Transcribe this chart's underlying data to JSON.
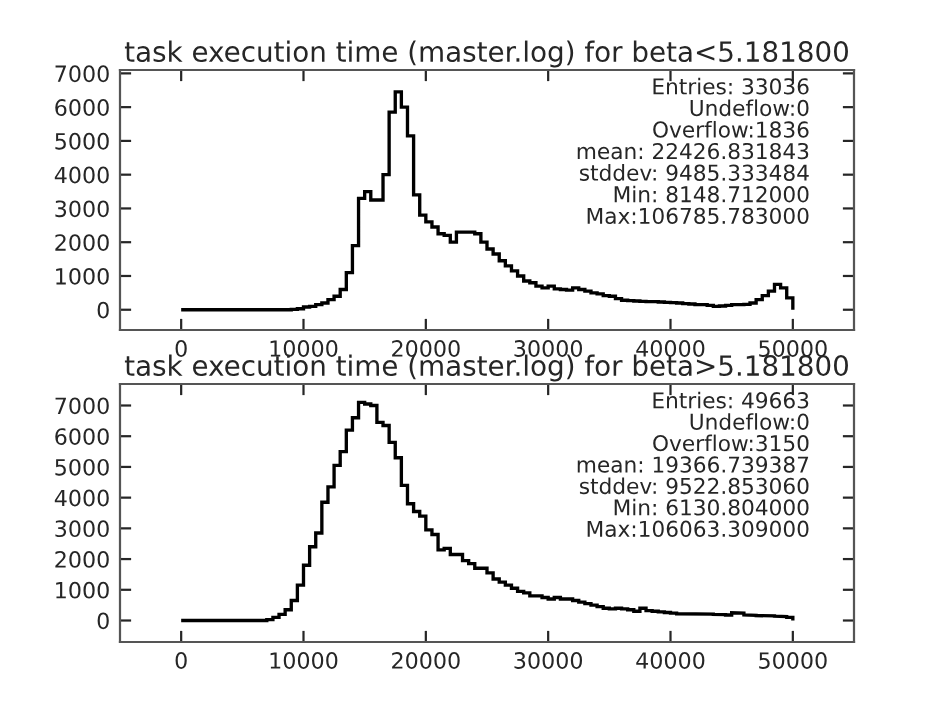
{
  "chart_data": [
    {
      "type": "histogram",
      "title": "task execution time (master.log) for beta<5.181800",
      "bins": [
        0,
        500,
        1000,
        1500,
        2000,
        2500,
        3000,
        3500,
        4000,
        4500,
        5000,
        5500,
        6000,
        6500,
        7000,
        7500,
        8000,
        8500,
        9000,
        9500,
        10000,
        10500,
        11000,
        11500,
        12000,
        12500,
        13000,
        13500,
        14000,
        14500,
        15000,
        15500,
        16000,
        16500,
        17000,
        17500,
        18000,
        18500,
        19000,
        19500,
        20000,
        20500,
        21000,
        21500,
        22000,
        22500,
        23000,
        23500,
        24000,
        24500,
        25000,
        25500,
        26000,
        26500,
        27000,
        27500,
        28000,
        28500,
        29000,
        29500,
        30000,
        30500,
        31000,
        31500,
        32000,
        32500,
        33000,
        33500,
        34000,
        34500,
        35000,
        35500,
        36000,
        36500,
        37000,
        37500,
        38000,
        38500,
        39000,
        39500,
        40000,
        40500,
        41000,
        41500,
        42000,
        42500,
        43000,
        43500,
        44000,
        44500,
        45000,
        45500,
        46000,
        46500,
        47000,
        47500,
        48000,
        48500,
        49000,
        49500,
        50000
      ],
      "values": [
        0,
        0,
        0,
        0,
        0,
        0,
        0,
        0,
        0,
        0,
        0,
        0,
        0,
        0,
        0,
        0,
        0,
        0,
        10,
        30,
        80,
        100,
        150,
        200,
        300,
        400,
        600,
        1100,
        1900,
        3300,
        3500,
        3250,
        3250,
        4000,
        5850,
        6450,
        6000,
        5150,
        3400,
        2800,
        2600,
        2450,
        2250,
        2200,
        2000,
        2300,
        2300,
        2300,
        2250,
        2000,
        1800,
        1650,
        1450,
        1300,
        1150,
        1000,
        850,
        800,
        700,
        650,
        700,
        620,
        600,
        580,
        650,
        600,
        550,
        500,
        470,
        420,
        400,
        330,
        280,
        270,
        260,
        250,
        240,
        240,
        230,
        220,
        210,
        200,
        180,
        170,
        150,
        150,
        130,
        100,
        110,
        130,
        150,
        150,
        160,
        200,
        300,
        420,
        550,
        750,
        650,
        350
      ],
      "color": "#000000",
      "xlim": [
        -5000,
        55000
      ],
      "xticks": [
        0,
        10000,
        20000,
        30000,
        40000,
        50000
      ],
      "ylim": [
        -600,
        7100
      ],
      "yticks": [
        0,
        1000,
        2000,
        3000,
        4000,
        5000,
        6000,
        7000
      ],
      "annotations": [
        "Entries: 33036",
        "Undeflow:0",
        "Overflow:1836",
        "mean: 22426.831843",
        "stddev: 9485.333484",
        "Min: 8148.712000",
        "Max:106785.783000"
      ],
      "grid": false,
      "legend": false
    },
    {
      "type": "histogram",
      "title": "task execution time (master.log) for beta>5.181800",
      "bins": [
        0,
        500,
        1000,
        1500,
        2000,
        2500,
        3000,
        3500,
        4000,
        4500,
        5000,
        5500,
        6000,
        6500,
        7000,
        7500,
        8000,
        8500,
        9000,
        9500,
        10000,
        10500,
        11000,
        11500,
        12000,
        12500,
        13000,
        13500,
        14000,
        14500,
        15000,
        15500,
        16000,
        16500,
        17000,
        17500,
        18000,
        18500,
        19000,
        19500,
        20000,
        20500,
        21000,
        21500,
        22000,
        22500,
        23000,
        23500,
        24000,
        24500,
        25000,
        25500,
        26000,
        26500,
        27000,
        27500,
        28000,
        28500,
        29000,
        29500,
        30000,
        30500,
        31000,
        31500,
        32000,
        32500,
        33000,
        33500,
        34000,
        34500,
        35000,
        35500,
        36000,
        36500,
        37000,
        37500,
        38000,
        38500,
        39000,
        39500,
        40000,
        40500,
        41000,
        41500,
        42000,
        42500,
        43000,
        43500,
        44000,
        44500,
        45000,
        45500,
        46000,
        46500,
        47000,
        47500,
        48000,
        48500,
        49000,
        49500,
        50000
      ],
      "values": [
        0,
        0,
        0,
        0,
        0,
        0,
        0,
        0,
        0,
        0,
        0,
        0,
        0,
        0,
        30,
        100,
        200,
        350,
        650,
        1150,
        1800,
        2400,
        2850,
        3850,
        4350,
        5050,
        5500,
        6200,
        6600,
        7100,
        7050,
        7000,
        6450,
        6350,
        5800,
        5300,
        4400,
        3800,
        3550,
        3400,
        2950,
        2800,
        2300,
        2350,
        2150,
        2150,
        1950,
        1850,
        1700,
        1700,
        1550,
        1350,
        1250,
        1150,
        1050,
        950,
        900,
        800,
        800,
        750,
        700,
        750,
        700,
        700,
        650,
        600,
        550,
        500,
        450,
        400,
        380,
        400,
        380,
        350,
        300,
        400,
        320,
        300,
        280,
        260,
        240,
        220,
        220,
        210,
        230,
        220,
        210,
        200,
        190,
        180,
        250,
        240,
        180,
        170,
        160,
        150,
        150,
        140,
        130,
        100
      ],
      "color": "#000000",
      "xlim": [
        -5000,
        55000
      ],
      "xticks": [
        0,
        10000,
        20000,
        30000,
        40000,
        50000
      ],
      "ylim": [
        -700,
        7700
      ],
      "yticks": [
        0,
        1000,
        2000,
        3000,
        4000,
        5000,
        6000,
        7000
      ],
      "annotations": [
        "Entries: 49663",
        "Undeflow:0",
        "Overflow:3150",
        "mean: 19366.739387",
        "stddev: 9522.853060",
        "Min: 6130.804000",
        "Max:106063.309000"
      ],
      "grid": false,
      "legend": false
    }
  ]
}
